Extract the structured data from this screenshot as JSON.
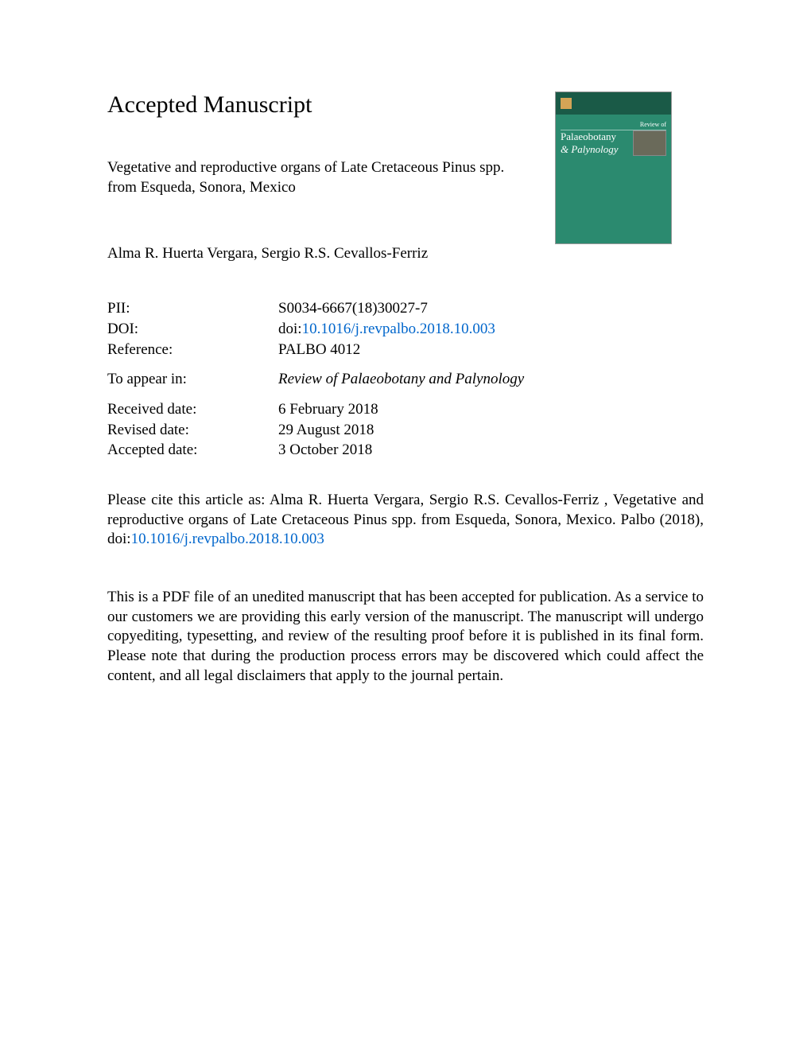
{
  "heading": "Accepted Manuscript",
  "title": "Vegetative and reproductive organs of Late Cretaceous Pinus spp. from Esqueda, Sonora, Mexico",
  "authors": "Alma R. Huerta Vergara, Sergio R.S. Cevallos-Ferriz",
  "journal_cover": {
    "review_of": "Review of",
    "title1": "Palaeobotany",
    "title2": "& Palynology",
    "background_color": "#2b8a6f",
    "top_bar_color": "#1a5a47"
  },
  "meta": {
    "pii_label": "PII:",
    "pii_value": "S0034-6667(18)30027-7",
    "doi_label": "DOI:",
    "doi_prefix": "doi:",
    "doi_link": "10.1016/j.revpalbo.2018.10.003",
    "reference_label": "Reference:",
    "reference_value": "PALBO 4012",
    "to_appear_label": "To appear in:",
    "to_appear_value": "Review of Palaeobotany and Palynology",
    "received_label": "Received date:",
    "received_value": "6 February 2018",
    "revised_label": "Revised date:",
    "revised_value": "29 August 2018",
    "accepted_label": "Accepted date:",
    "accepted_value": "3 October 2018"
  },
  "citation": {
    "prefix": "Please cite this article as: Alma R. Huerta Vergara, Sergio R.S. Cevallos-Ferriz , Vegetative and reproductive organs of Late Cretaceous Pinus spp. from Esqueda, Sonora, Mexico. Palbo (2018), doi:",
    "doi_link": "10.1016/j.revpalbo.2018.10.003"
  },
  "disclaimer": "This is a PDF file of an unedited manuscript that has been accepted for publication. As a service to our customers we are providing this early version of the manuscript. The manuscript will undergo copyediting, typesetting, and review of the resulting proof before it is published in its final form. Please note that during the production process errors may be discovered which could affect the content, and all legal disclaimers that apply to the journal pertain."
}
